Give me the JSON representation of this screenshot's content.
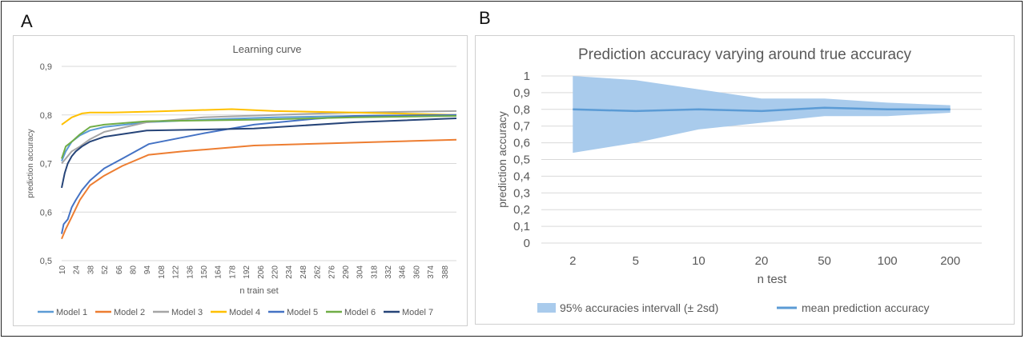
{
  "panels": {
    "a_letter": "A",
    "b_letter": "B"
  },
  "colors": {
    "model1": "#5B9BD5",
    "model2": "#ED7D31",
    "model3": "#A5A5A5",
    "model4": "#FFC000",
    "model5": "#4472C4",
    "model6": "#70AD47",
    "model7": "#264478",
    "band": "#A9CBEC",
    "mean": "#5B9BD5",
    "grid": "#D9D9D9",
    "text": "#595959"
  },
  "chart_data": [
    {
      "type": "line",
      "title": "Learning curve",
      "xlabel": "n train set",
      "ylabel": "prediction accuracy",
      "ylim": [
        0.5,
        0.9
      ],
      "y_ticks": [
        "0,5",
        "0,6",
        "0,7",
        "0,8",
        "0,9"
      ],
      "x_ticks": [
        "10",
        "24",
        "38",
        "52",
        "66",
        "80",
        "94",
        "108",
        "122",
        "136",
        "150",
        "164",
        "178",
        "192",
        "206",
        "220",
        "234",
        "248",
        "262",
        "276",
        "290",
        "304",
        "318",
        "332",
        "346",
        "360",
        "374",
        "388"
      ],
      "xlim": [
        10,
        400
      ],
      "grid": "horizontal",
      "legend_position": "bottom",
      "series": [
        {
          "name": "Model 1",
          "x": [
            10,
            14,
            20,
            28,
            38,
            52,
            94,
            150,
            220,
            300,
            400
          ],
          "values": [
            0.705,
            0.725,
            0.745,
            0.758,
            0.768,
            0.775,
            0.785,
            0.79,
            0.795,
            0.798,
            0.8
          ]
        },
        {
          "name": "Model 2",
          "x": [
            10,
            14,
            20,
            28,
            38,
            52,
            70,
            96,
            130,
            200,
            300,
            400
          ],
          "values": [
            0.545,
            0.565,
            0.59,
            0.625,
            0.655,
            0.675,
            0.695,
            0.718,
            0.725,
            0.737,
            0.743,
            0.749
          ]
        },
        {
          "name": "Model 3",
          "x": [
            10,
            14,
            20,
            28,
            38,
            52,
            94,
            150,
            220,
            300,
            400
          ],
          "values": [
            0.7,
            0.71,
            0.725,
            0.735,
            0.75,
            0.765,
            0.785,
            0.795,
            0.8,
            0.805,
            0.808
          ]
        },
        {
          "name": "Model 4",
          "x": [
            10,
            20,
            30,
            38,
            60,
            100,
            178,
            220,
            300,
            400
          ],
          "values": [
            0.78,
            0.795,
            0.803,
            0.805,
            0.805,
            0.807,
            0.812,
            0.808,
            0.805,
            0.8
          ]
        },
        {
          "name": "Model 5",
          "x": [
            10,
            12,
            16,
            20,
            24,
            30,
            38,
            52,
            70,
            96,
            150,
            200,
            260,
            300,
            400
          ],
          "values": [
            0.555,
            0.575,
            0.585,
            0.61,
            0.625,
            0.645,
            0.665,
            0.69,
            0.71,
            0.74,
            0.762,
            0.78,
            0.792,
            0.798,
            0.8
          ]
        },
        {
          "name": "Model 6",
          "x": [
            10,
            14,
            20,
            28,
            38,
            52,
            94,
            200,
            300,
            400
          ],
          "values": [
            0.71,
            0.735,
            0.745,
            0.76,
            0.775,
            0.78,
            0.787,
            0.79,
            0.795,
            0.798
          ]
        },
        {
          "name": "Model 7",
          "x": [
            10,
            13,
            16,
            20,
            24,
            30,
            38,
            52,
            94,
            150,
            200,
            300,
            400
          ],
          "values": [
            0.65,
            0.68,
            0.7,
            0.715,
            0.725,
            0.735,
            0.745,
            0.755,
            0.768,
            0.77,
            0.772,
            0.785,
            0.793
          ]
        }
      ]
    },
    {
      "type": "area",
      "title": "Prediction accuracy varying around true accuracy",
      "xlabel": "n test",
      "ylabel": "prediction accuracy",
      "ylim": [
        0,
        1
      ],
      "y_ticks": [
        "0",
        "0,1",
        "0,2",
        "0,3",
        "0,4",
        "0,5",
        "0,6",
        "0,7",
        "0,8",
        "0,9",
        "1"
      ],
      "categories": [
        "2",
        "5",
        "10",
        "20",
        "50",
        "100",
        "200"
      ],
      "grid": "horizontal",
      "legend_position": "bottom",
      "series": [
        {
          "name": "95% accuracies intervall (± 2sd)",
          "lower": [
            0.54,
            0.6,
            0.68,
            0.72,
            0.76,
            0.76,
            0.78
          ],
          "upper": [
            1.0,
            0.975,
            0.92,
            0.865,
            0.865,
            0.84,
            0.825
          ]
        },
        {
          "name": "mean prediction accuracy",
          "values": [
            0.8,
            0.79,
            0.8,
            0.79,
            0.81,
            0.8,
            0.8
          ]
        }
      ]
    }
  ]
}
